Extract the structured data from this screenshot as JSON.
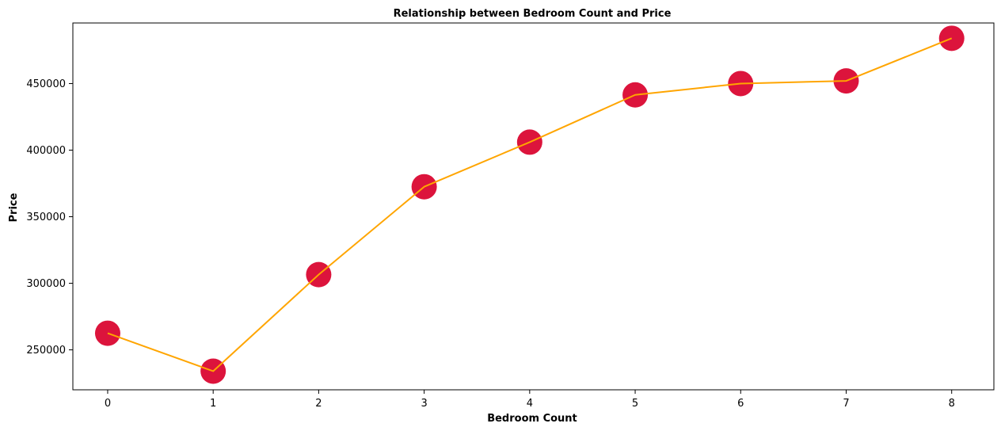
{
  "chart_data": {
    "type": "line",
    "title": "Relationship between Bedroom Count and Price",
    "xlabel": "Bedroom Count",
    "ylabel": "Price",
    "x": [
      0,
      1,
      2,
      3,
      4,
      5,
      6,
      7,
      8
    ],
    "series": [
      {
        "values": [
          262500,
          234000,
          306500,
          372500,
          406000,
          441500,
          450000,
          452000,
          484000
        ],
        "line_color": "#FFA500",
        "marker_color": "#DC143C"
      }
    ],
    "xticks": [
      "0",
      "1",
      "2",
      "3",
      "4",
      "5",
      "6",
      "7",
      "8"
    ],
    "yticks": [
      "250000",
      "300000",
      "350000",
      "400000",
      "450000"
    ],
    "xlim": [
      -0.33,
      8.4
    ],
    "ylim": [
      220000,
      495500
    ],
    "grid": false
  }
}
